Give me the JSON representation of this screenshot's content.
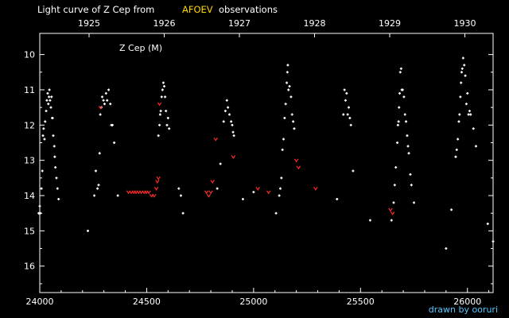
{
  "title_prefix": "Light curve of Z Cep from",
  "title_source": "AFOEV",
  "title_suffix": "observations",
  "credit": "drawn by ooruri",
  "colors": {
    "background": "#000000",
    "axes": "#ffffff",
    "visual": "#ffffff",
    "fainter_than": "#ff2a2a",
    "source": "#ffd500",
    "credit": "#55c8ff"
  },
  "chart_data": {
    "type": "scatter",
    "title": "Z Cep (M)",
    "xlabel": "",
    "ylabel": "",
    "xlim": [
      24000,
      26120
    ],
    "ylim": [
      9.4,
      16.75
    ],
    "y_inverted": true,
    "x_ticks": [
      24000,
      24500,
      25000,
      25500,
      26000
    ],
    "y_ticks": [
      10,
      11,
      12,
      13,
      14,
      15,
      16
    ],
    "top_axis_ticks": [
      "1925",
      "1926",
      "1927",
      "1928",
      "1929",
      "1930"
    ],
    "series": [
      {
        "marker": "dot",
        "points": [
          [
            23995,
            14.5
          ],
          [
            24000,
            14.3
          ],
          [
            24003,
            14.5
          ],
          [
            24008,
            13.8
          ],
          [
            24012,
            13.3
          ],
          [
            24015,
            12.3
          ],
          [
            24018,
            12.1
          ],
          [
            24022,
            12.4
          ],
          [
            24025,
            11.9
          ],
          [
            24030,
            11.6
          ],
          [
            24033,
            11.3
          ],
          [
            24037,
            11.1
          ],
          [
            24040,
            11.4
          ],
          [
            24043,
            11.2
          ],
          [
            24045,
            11.0
          ],
          [
            24048,
            11.3
          ],
          [
            24052,
            11.5
          ],
          [
            24055,
            11.2
          ],
          [
            24058,
            11.8
          ],
          [
            24060,
            11.8
          ],
          [
            24063,
            12.3
          ],
          [
            24068,
            12.6
          ],
          [
            24070,
            12.9
          ],
          [
            24073,
            13.2
          ],
          [
            24078,
            13.5
          ],
          [
            24083,
            13.8
          ],
          [
            24088,
            14.1
          ],
          [
            24225,
            15.0
          ],
          [
            24255,
            14.0
          ],
          [
            24262,
            13.3
          ],
          [
            24270,
            13.8
          ],
          [
            24275,
            13.7
          ],
          [
            24280,
            12.8
          ],
          [
            24283,
            11.7
          ],
          [
            24288,
            11.5
          ],
          [
            24292,
            11.2
          ],
          [
            24298,
            11.3
          ],
          [
            24303,
            11.4
          ],
          [
            24310,
            11.1
          ],
          [
            24315,
            11.3
          ],
          [
            24322,
            11.0
          ],
          [
            24330,
            11.4
          ],
          [
            24335,
            12.0
          ],
          [
            24340,
            12.0
          ],
          [
            24348,
            12.5
          ],
          [
            24365,
            14.0
          ],
          [
            24555,
            12.3
          ],
          [
            24560,
            12.0
          ],
          [
            24563,
            11.7
          ],
          [
            24566,
            11.6
          ],
          [
            24570,
            11.2
          ],
          [
            24574,
            11.0
          ],
          [
            24578,
            10.8
          ],
          [
            24582,
            10.9
          ],
          [
            24586,
            11.2
          ],
          [
            24590,
            11.6
          ],
          [
            24595,
            12.0
          ],
          [
            24600,
            11.8
          ],
          [
            24605,
            12.1
          ],
          [
            24650,
            13.8
          ],
          [
            24660,
            14.0
          ],
          [
            24670,
            14.5
          ],
          [
            24830,
            13.8
          ],
          [
            24845,
            13.1
          ],
          [
            24860,
            11.9
          ],
          [
            24868,
            11.6
          ],
          [
            24875,
            11.3
          ],
          [
            24880,
            11.5
          ],
          [
            24887,
            11.7
          ],
          [
            24895,
            11.9
          ],
          [
            24900,
            12.0
          ],
          [
            24904,
            12.2
          ],
          [
            24908,
            12.3
          ],
          [
            24950,
            14.1
          ],
          [
            25000,
            13.9
          ],
          [
            25105,
            14.5
          ],
          [
            25120,
            14.0
          ],
          [
            25125,
            13.8
          ],
          [
            25130,
            13.5
          ],
          [
            25135,
            12.7
          ],
          [
            25140,
            12.4
          ],
          [
            25145,
            11.8
          ],
          [
            25150,
            11.4
          ],
          [
            25155,
            10.8
          ],
          [
            25158,
            10.5
          ],
          [
            25160,
            10.3
          ],
          [
            25163,
            11.0
          ],
          [
            25168,
            10.9
          ],
          [
            25175,
            11.2
          ],
          [
            25180,
            11.7
          ],
          [
            25185,
            11.9
          ],
          [
            25190,
            12.1
          ],
          [
            25390,
            14.1
          ],
          [
            25420,
            11.7
          ],
          [
            25425,
            11.0
          ],
          [
            25430,
            11.3
          ],
          [
            25435,
            11.1
          ],
          [
            25440,
            11.7
          ],
          [
            25445,
            11.5
          ],
          [
            25450,
            11.8
          ],
          [
            25455,
            12.0
          ],
          [
            25465,
            13.3
          ],
          [
            25545,
            14.7
          ],
          [
            25645,
            14.7
          ],
          [
            25655,
            14.2
          ],
          [
            25660,
            13.7
          ],
          [
            25665,
            13.2
          ],
          [
            25672,
            12.5
          ],
          [
            25675,
            12.0
          ],
          [
            25678,
            11.9
          ],
          [
            25680,
            11.5
          ],
          [
            25683,
            11.1
          ],
          [
            25686,
            10.5
          ],
          [
            25690,
            10.4
          ],
          [
            25693,
            11.0
          ],
          [
            25697,
            11.0
          ],
          [
            25703,
            11.2
          ],
          [
            25708,
            11.7
          ],
          [
            25713,
            11.9
          ],
          [
            25718,
            12.3
          ],
          [
            25722,
            12.6
          ],
          [
            25726,
            12.8
          ],
          [
            25733,
            13.4
          ],
          [
            25738,
            13.7
          ],
          [
            25750,
            14.2
          ],
          [
            25900,
            15.5
          ],
          [
            25925,
            14.4
          ],
          [
            25945,
            12.9
          ],
          [
            25950,
            12.7
          ],
          [
            25955,
            12.4
          ],
          [
            25960,
            11.9
          ],
          [
            25963,
            11.7
          ],
          [
            25967,
            11.2
          ],
          [
            25970,
            10.8
          ],
          [
            25973,
            10.5
          ],
          [
            25976,
            10.4
          ],
          [
            25980,
            10.1
          ],
          [
            25985,
            10.3
          ],
          [
            25990,
            10.6
          ],
          [
            25995,
            11.4
          ],
          [
            26000,
            11.1
          ],
          [
            26005,
            11.7
          ],
          [
            26010,
            11.6
          ],
          [
            26015,
            11.7
          ],
          [
            26028,
            12.1
          ],
          [
            26040,
            12.6
          ],
          [
            26095,
            14.8
          ],
          [
            26120,
            15.3
          ]
        ]
      },
      {
        "marker": "fainter-than",
        "points": [
          [
            24285,
            11.5
          ],
          [
            24415,
            13.9
          ],
          [
            24428,
            13.9
          ],
          [
            24440,
            13.9
          ],
          [
            24450,
            13.9
          ],
          [
            24462,
            13.9
          ],
          [
            24475,
            13.9
          ],
          [
            24488,
            13.9
          ],
          [
            24498,
            13.9
          ],
          [
            24510,
            13.9
          ],
          [
            24523,
            14.0
          ],
          [
            24535,
            14.0
          ],
          [
            24545,
            13.8
          ],
          [
            24550,
            13.6
          ],
          [
            24555,
            13.5
          ],
          [
            24560,
            11.4
          ],
          [
            24780,
            13.9
          ],
          [
            24790,
            14.0
          ],
          [
            24800,
            13.9
          ],
          [
            24808,
            13.6
          ],
          [
            24823,
            12.4
          ],
          [
            24905,
            12.9
          ],
          [
            25020,
            13.8
          ],
          [
            25070,
            13.9
          ],
          [
            25200,
            13.0
          ],
          [
            25210,
            13.2
          ],
          [
            25290,
            13.8
          ],
          [
            25640,
            14.4
          ],
          [
            25650,
            14.5
          ]
        ]
      }
    ]
  }
}
